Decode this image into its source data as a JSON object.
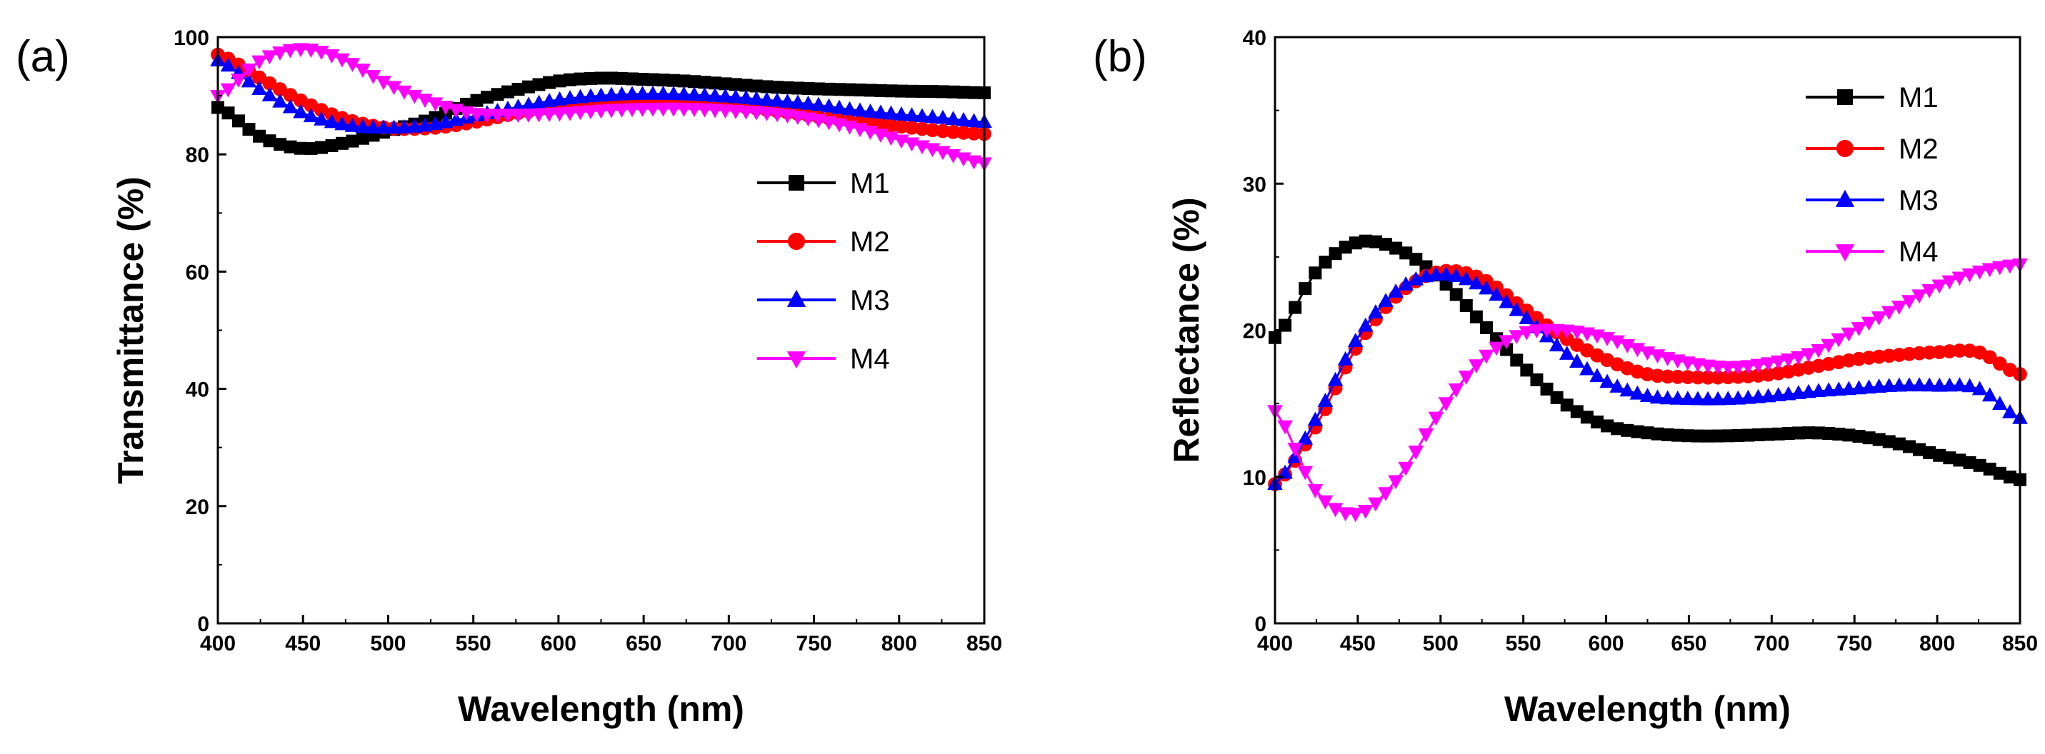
{
  "chart_data": [
    {
      "type": "line",
      "panel_label": "(a)",
      "xlabel": "Wavelength (nm)",
      "ylabel": "Transmittance (%)",
      "xlim": [
        400,
        850
      ],
      "ylim": [
        0,
        100
      ],
      "xticks": [
        400,
        450,
        500,
        550,
        600,
        650,
        700,
        750,
        800,
        850
      ],
      "yticks": [
        0,
        20,
        40,
        60,
        80,
        100
      ],
      "legend_position": "center-right",
      "series": [
        {
          "name": "M1",
          "color": "#000000",
          "marker": "square",
          "x": [
            400,
            425,
            450,
            475,
            500,
            525,
            550,
            575,
            600,
            625,
            650,
            675,
            700,
            725,
            750,
            775,
            800,
            825,
            850
          ],
          "y": [
            88,
            83,
            81,
            82,
            84,
            86,
            89,
            91,
            92.5,
            93,
            92.8,
            92.5,
            92,
            91.5,
            91.2,
            91,
            90.8,
            90.7,
            90.5
          ]
        },
        {
          "name": "M2",
          "color": "#ff0000",
          "marker": "circle",
          "x": [
            400,
            425,
            450,
            475,
            500,
            525,
            550,
            575,
            600,
            625,
            650,
            675,
            700,
            725,
            750,
            775,
            800,
            825,
            850
          ],
          "y": [
            97,
            93,
            89,
            86,
            84.5,
            84.5,
            85.5,
            87,
            88,
            88.8,
            89,
            88.8,
            88.3,
            87.5,
            86.5,
            85.5,
            84.8,
            84,
            83.5
          ]
        },
        {
          "name": "M3",
          "color": "#0000ff",
          "marker": "triangle-up",
          "x": [
            400,
            425,
            450,
            475,
            500,
            525,
            550,
            575,
            600,
            625,
            650,
            675,
            700,
            725,
            750,
            775,
            800,
            825,
            850
          ],
          "y": [
            96,
            91,
            87,
            85,
            84.5,
            85,
            86.5,
            88,
            89.3,
            90,
            90.3,
            90.2,
            89.8,
            89.2,
            88.5,
            87.5,
            86.8,
            86.2,
            85.5
          ]
        },
        {
          "name": "M4",
          "color": "#ff00ff",
          "marker": "triangle-down",
          "x": [
            400,
            425,
            450,
            475,
            500,
            525,
            550,
            575,
            600,
            625,
            650,
            675,
            700,
            725,
            750,
            775,
            800,
            825,
            850
          ],
          "y": [
            90,
            96,
            98,
            96,
            92,
            89,
            87,
            86.8,
            87,
            87.5,
            87.8,
            87.8,
            87.5,
            87,
            86,
            84.5,
            82.5,
            80.5,
            78.5
          ]
        }
      ]
    },
    {
      "type": "line",
      "panel_label": "(b)",
      "xlabel": "Wavelength (nm)",
      "ylabel": "Reflectance (%)",
      "xlim": [
        400,
        850
      ],
      "ylim": [
        0,
        40
      ],
      "xticks": [
        400,
        450,
        500,
        550,
        600,
        650,
        700,
        750,
        800,
        850
      ],
      "yticks": [
        0,
        10,
        20,
        30,
        40
      ],
      "legend_position": "top-right",
      "series": [
        {
          "name": "M1",
          "color": "#000000",
          "marker": "square",
          "x": [
            400,
            425,
            450,
            475,
            500,
            525,
            550,
            575,
            600,
            625,
            650,
            675,
            700,
            725,
            750,
            775,
            800,
            825,
            850
          ],
          "y": [
            19.5,
            24,
            26,
            25.5,
            23.5,
            20.5,
            17.5,
            15,
            13.5,
            13,
            12.8,
            12.8,
            12.9,
            13,
            12.8,
            12.3,
            11.5,
            10.8,
            9.8
          ]
        },
        {
          "name": "M2",
          "color": "#ff0000",
          "marker": "circle",
          "x": [
            400,
            425,
            450,
            475,
            500,
            525,
            550,
            575,
            600,
            625,
            650,
            675,
            700,
            725,
            750,
            775,
            800,
            825,
            850
          ],
          "y": [
            9.5,
            13.5,
            19,
            22.5,
            24,
            23.5,
            21.5,
            19.5,
            18,
            17,
            16.8,
            16.8,
            17,
            17.5,
            18,
            18.3,
            18.5,
            18.5,
            17
          ]
        },
        {
          "name": "M3",
          "color": "#0000ff",
          "marker": "triangle-up",
          "x": [
            400,
            425,
            450,
            475,
            500,
            525,
            550,
            575,
            600,
            625,
            650,
            675,
            700,
            725,
            750,
            775,
            800,
            825,
            850
          ],
          "y": [
            9.5,
            14,
            19.5,
            22.8,
            23.8,
            23,
            21,
            18.5,
            16.5,
            15.5,
            15.3,
            15.3,
            15.5,
            15.8,
            16,
            16.2,
            16.2,
            16,
            14
          ]
        },
        {
          "name": "M4",
          "color": "#ff00ff",
          "marker": "triangle-down",
          "x": [
            400,
            425,
            450,
            475,
            500,
            525,
            550,
            575,
            600,
            625,
            650,
            675,
            700,
            725,
            750,
            775,
            800,
            825,
            850
          ],
          "y": [
            14.5,
            9,
            7.5,
            10,
            14.5,
            18,
            19.8,
            20,
            19.5,
            18.5,
            17.8,
            17.5,
            17.8,
            18.5,
            20,
            21.5,
            23,
            24,
            24.5
          ]
        }
      ]
    }
  ]
}
